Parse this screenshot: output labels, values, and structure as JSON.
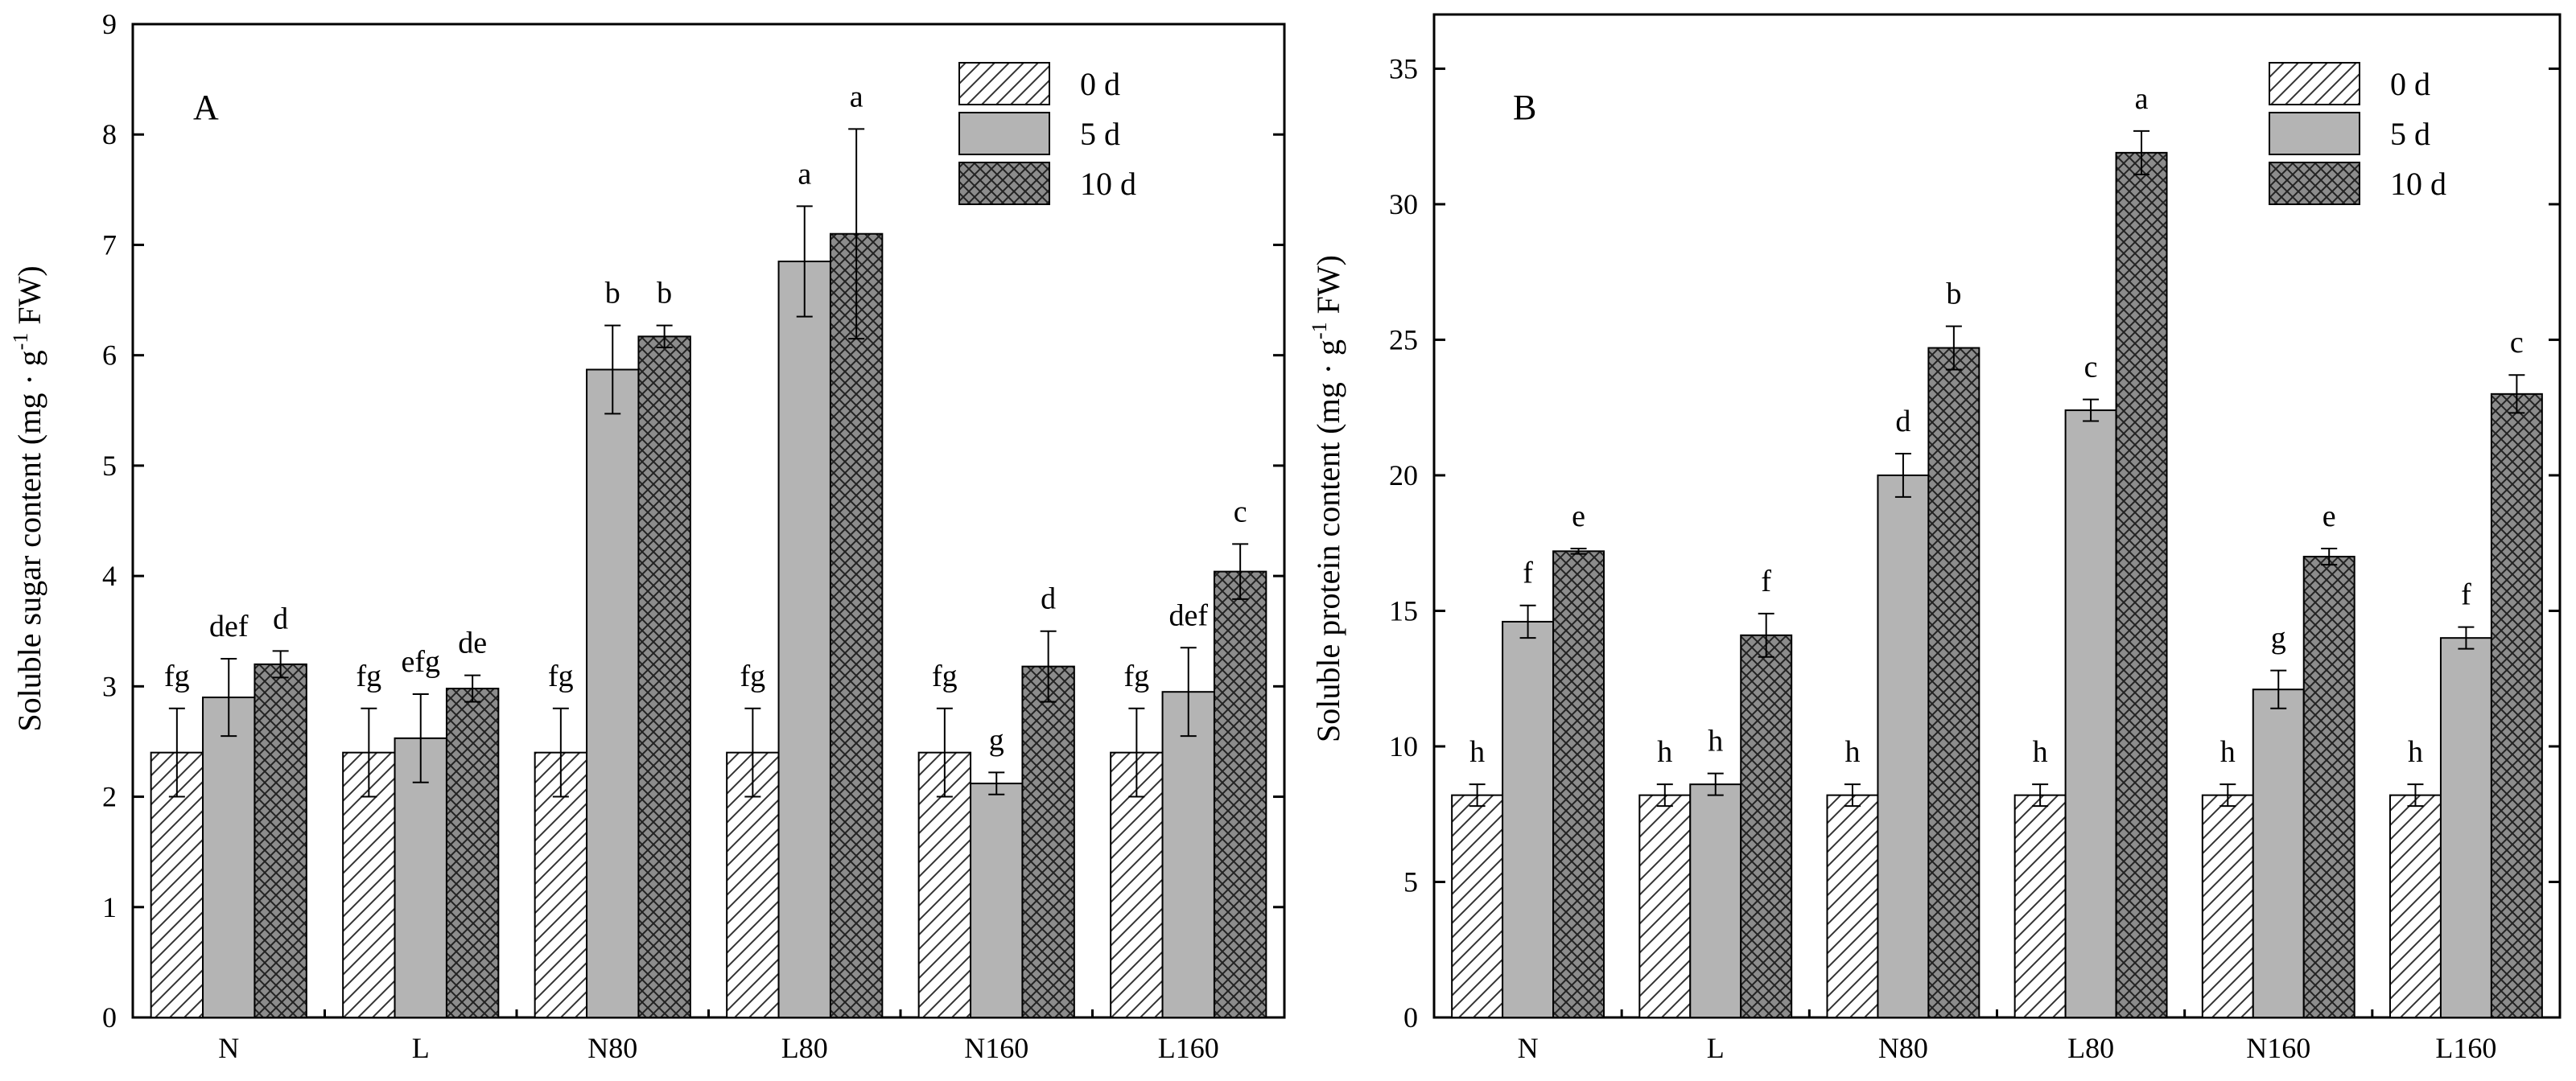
{
  "colors": {
    "axis": "#000000",
    "bar_5d": "#b4b4b4",
    "bar_10d_bg": "#8c8c8c",
    "hatch_line": "#222222",
    "bg": "#ffffff"
  },
  "chart_data": [
    {
      "type": "bar",
      "panel_label": "A",
      "title": "",
      "xlabel": "",
      "ylabel_pre": "Soluble sugar content (mg · g",
      "ylabel_sup": "-1",
      "ylabel_post": " FW)",
      "categories": [
        "N",
        "L",
        "N80",
        "L80",
        "N160",
        "L160"
      ],
      "ylim": [
        0,
        9
      ],
      "yticks": [
        0,
        1,
        2,
        3,
        4,
        5,
        6,
        7,
        8,
        9
      ],
      "legend_position": "top-right",
      "series": [
        {
          "name": "0 d",
          "pattern": "diagonal",
          "values": [
            2.4,
            2.4,
            2.4,
            2.4,
            2.4,
            2.4
          ],
          "errors": [
            0.4,
            0.4,
            0.4,
            0.4,
            0.4,
            0.4
          ],
          "labels": [
            "fg",
            "fg",
            "fg",
            "fg",
            "fg",
            "fg"
          ]
        },
        {
          "name": "5 d",
          "pattern": "solid",
          "values": [
            2.9,
            2.53,
            5.87,
            6.85,
            2.12,
            2.95
          ],
          "errors": [
            0.35,
            0.4,
            0.4,
            0.5,
            0.1,
            0.4
          ],
          "labels": [
            "def",
            "efg",
            "b",
            "a",
            "g",
            "def"
          ]
        },
        {
          "name": "10 d",
          "pattern": "crosshatch",
          "values": [
            3.2,
            2.98,
            6.17,
            7.1,
            3.18,
            4.04
          ],
          "errors": [
            0.12,
            0.12,
            0.1,
            0.95,
            0.32,
            0.25
          ],
          "labels": [
            "d",
            "de",
            "b",
            "a",
            "d",
            "c"
          ]
        }
      ]
    },
    {
      "type": "bar",
      "panel_label": "B",
      "title": "",
      "xlabel": "",
      "ylabel_pre": "Soluble protein content (mg · g",
      "ylabel_sup": "-1",
      "ylabel_post": " FW)",
      "categories": [
        "N",
        "L",
        "N80",
        "L80",
        "N160",
        "L160"
      ],
      "ylim": [
        0,
        37
      ],
      "yticks": [
        0,
        5,
        10,
        15,
        20,
        25,
        30,
        35
      ],
      "legend_position": "top-right",
      "series": [
        {
          "name": "0 d",
          "pattern": "diagonal",
          "values": [
            8.2,
            8.2,
            8.2,
            8.2,
            8.2,
            8.2
          ],
          "errors": [
            0.4,
            0.4,
            0.4,
            0.4,
            0.4,
            0.4
          ],
          "labels": [
            "h",
            "h",
            "h",
            "h",
            "h",
            "h"
          ]
        },
        {
          "name": "5 d",
          "pattern": "solid",
          "values": [
            14.6,
            8.6,
            20.0,
            22.4,
            12.1,
            14.0
          ],
          "errors": [
            0.6,
            0.4,
            0.8,
            0.4,
            0.7,
            0.4
          ],
          "labels": [
            "f",
            "h",
            "d",
            "c",
            "g",
            "f"
          ]
        },
        {
          "name": "10 d",
          "pattern": "crosshatch",
          "values": [
            17.2,
            14.1,
            24.7,
            31.9,
            17.0,
            23.0
          ],
          "errors": [
            0.1,
            0.8,
            0.8,
            0.8,
            0.3,
            0.7
          ],
          "labels": [
            "e",
            "f",
            "b",
            "a",
            "e",
            "c"
          ]
        }
      ]
    }
  ]
}
